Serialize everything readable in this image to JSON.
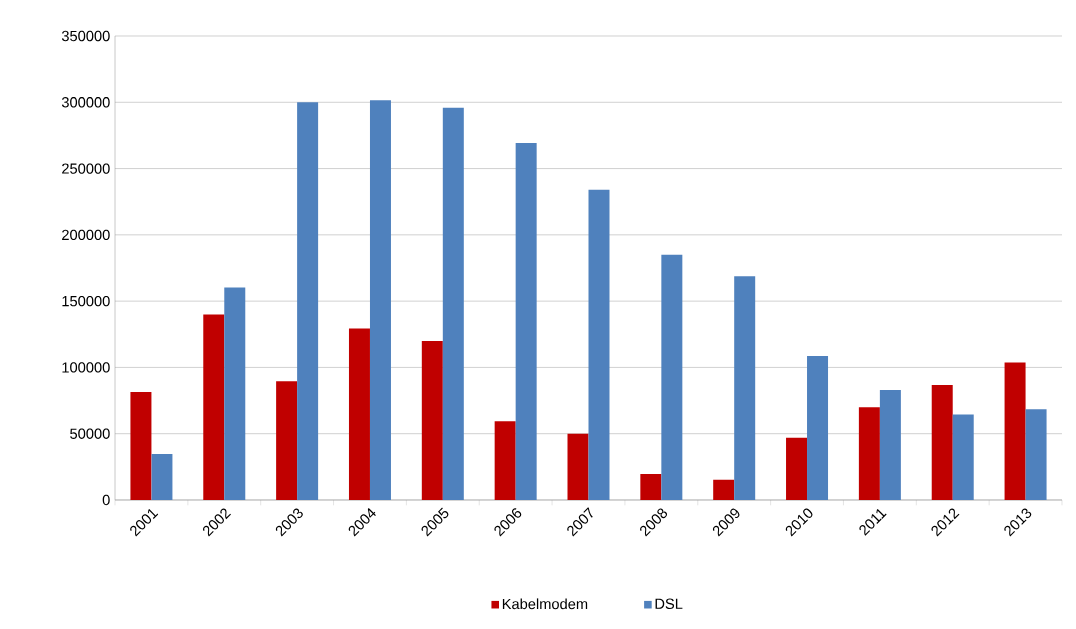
{
  "chart_data": {
    "type": "bar",
    "categories": [
      "2001",
      "2002",
      "2003",
      "2004",
      "2005",
      "2006",
      "2007",
      "2008",
      "2009",
      "2010",
      "2011",
      "2012",
      "2013"
    ],
    "series": [
      {
        "name": "Kabelmodem",
        "color": "#c00000",
        "values": [
          81500,
          140000,
          89500,
          129400,
          119900,
          59400,
          50000,
          19600,
          15300,
          46900,
          70000,
          86800,
          103800
        ]
      },
      {
        "name": "DSL",
        "color": "#4f81bd",
        "values": [
          34600,
          160200,
          300000,
          301600,
          295900,
          269300,
          234000,
          185000,
          168800,
          108600,
          83000,
          64400,
          68500
        ]
      }
    ],
    "ylim": [
      0,
      350000
    ],
    "yticks": [
      0,
      50000,
      100000,
      150000,
      200000,
      250000,
      300000,
      350000
    ],
    "grid": "y",
    "legend": "bottom"
  }
}
